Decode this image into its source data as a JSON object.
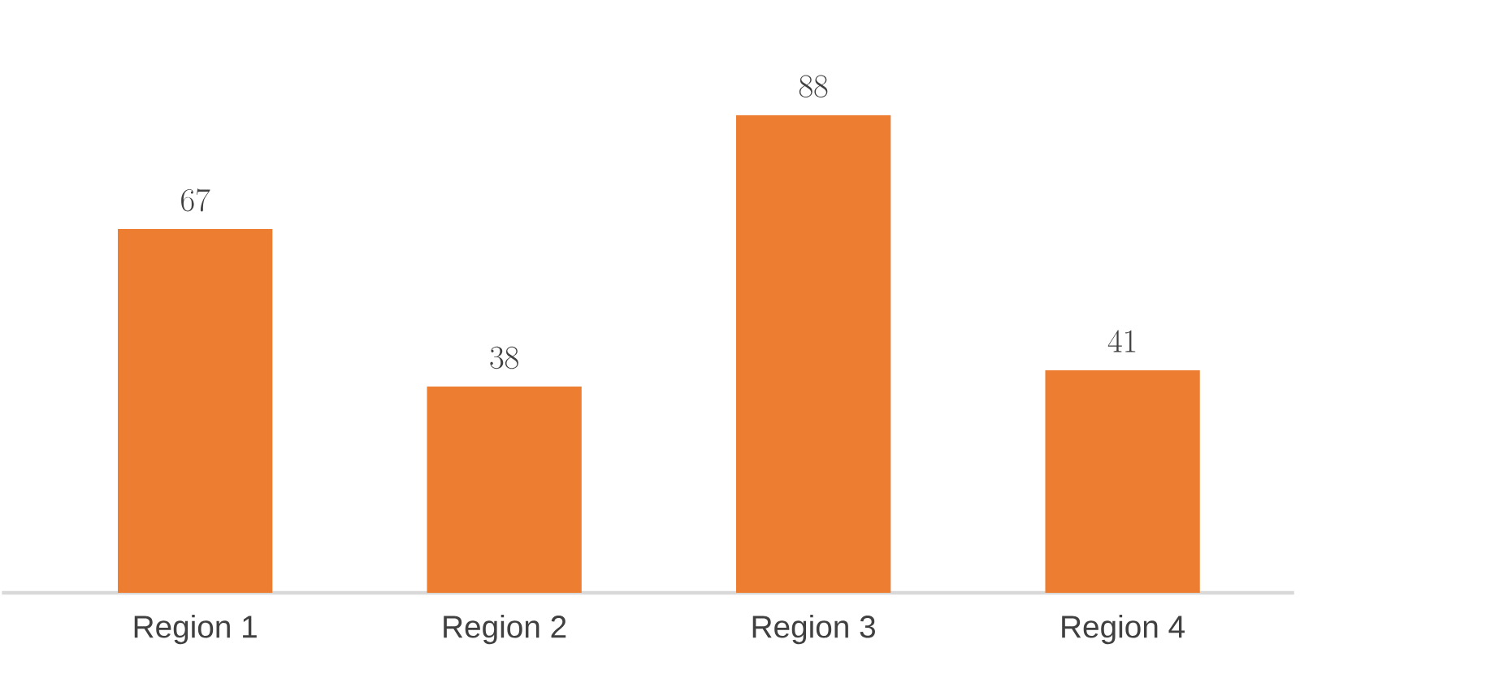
{
  "chart_data": {
    "type": "bar",
    "categories": [
      "Region 1",
      "Region 2",
      "Region 3",
      "Region 4"
    ],
    "values": [
      67,
      38,
      88,
      41
    ],
    "color": "#ed7d31",
    "data_labels": true
  }
}
